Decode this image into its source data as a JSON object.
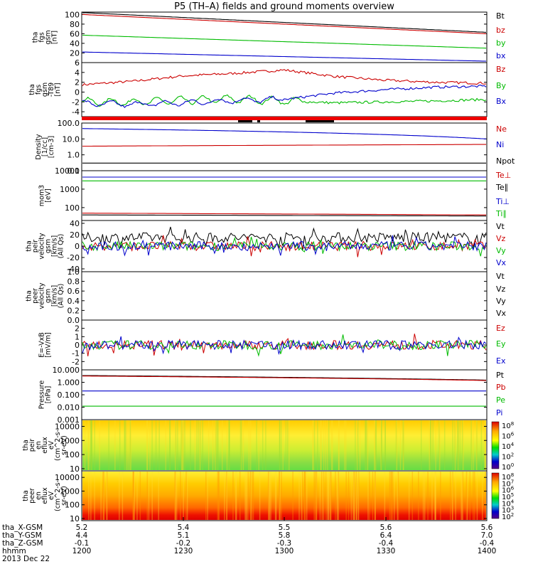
{
  "title": "P5 (TH–A) fields and ground moments overview",
  "chart_data": [
    {
      "id": "fgs_gsm",
      "type": "line",
      "ylabel": [
        "tha",
        "fgs",
        "gsm",
        "[nT]"
      ],
      "yticks": [
        "100",
        "80",
        "60",
        "40",
        "20"
      ],
      "ylim": [
        0,
        105
      ],
      "series": [
        {
          "name": "Bt",
          "color": "#000000",
          "values": [
            104,
            63
          ]
        },
        {
          "name": "bz",
          "color": "#cc0000",
          "values": [
            100,
            60
          ]
        },
        {
          "name": "by",
          "color": "#00bb00",
          "values": [
            57,
            30
          ]
        },
        {
          "name": "bx",
          "color": "#0000cc",
          "values": [
            22,
            3
          ]
        }
      ]
    },
    {
      "id": "fgs_dgsm",
      "type": "line",
      "ylabel": [
        "tha",
        "fgs",
        "gsm",
        "-T89",
        "[nT]"
      ],
      "yticks": [
        "6",
        "4",
        "2",
        "0",
        "-2",
        "-4"
      ],
      "ylim": [
        -5,
        6
      ],
      "series": [
        {
          "name": "Bz",
          "color": "#cc0000",
          "values": [
            1.5,
            2.2,
            3.3,
            3.8,
            4.5,
            3.2,
            2.4,
            2.0,
            1.8
          ]
        },
        {
          "name": "By",
          "color": "#00bb00",
          "values": [
            -2.0,
            -2.0,
            -1.7,
            -1.4,
            -1.8,
            -2.2,
            -2.0,
            -1.8,
            -1.5
          ]
        },
        {
          "name": "Bx",
          "color": "#0000cc",
          "values": [
            -2.3,
            -2.5,
            -2.2,
            -1.7,
            -1.5,
            -0.2,
            0.5,
            1.0,
            1.2
          ]
        }
      ]
    },
    {
      "id": "density",
      "type": "line",
      "ylabel": [
        "Density",
        "[1/cc]",
        "[cm-3]"
      ],
      "yticks": [
        "100.0",
        "10.0",
        "1.0",
        "0.1"
      ],
      "log": true,
      "ylim": [
        0.1,
        100
      ],
      "series": [
        {
          "name": "Ne",
          "color": "#cc0000",
          "values": [
            3.5,
            4.5
          ]
        },
        {
          "name": "Ni",
          "color": "#0000cc",
          "values": [
            45,
            10
          ]
        },
        {
          "name": "Npot",
          "color": "#000000",
          "values": [
            0.3,
            0.3
          ]
        }
      ]
    },
    {
      "id": "temp",
      "type": "line",
      "ylabel": [
        "mom3",
        "[eV]"
      ],
      "yticks": [
        "10000",
        "1000",
        "100"
      ],
      "log": true,
      "ylim": [
        20,
        10000
      ],
      "series": [
        {
          "name": "Te⊥",
          "color": "#cc0000",
          "values": [
            50,
            40
          ]
        },
        {
          "name": "Te∥",
          "color": "#000000",
          "values": [
            40,
            35
          ]
        },
        {
          "name": "Ti⊥",
          "color": "#0000cc",
          "values": [
            4500,
            4500
          ]
        },
        {
          "name": "Ti∥",
          "color": "#00bb00",
          "values": [
            2800,
            2800
          ]
        }
      ]
    },
    {
      "id": "peir_vel",
      "type": "line",
      "ylabel": [
        "tha",
        "peir",
        "velocity",
        "gsm",
        "[km/s]",
        "(All Qs)"
      ],
      "yticks": [
        "40",
        "20",
        "0",
        "-20",
        "-40"
      ],
      "ylim": [
        -45,
        45
      ],
      "series": [
        {
          "name": "Vt",
          "color": "#000000",
          "values": [
            15,
            15
          ]
        },
        {
          "name": "Vz",
          "color": "#cc0000",
          "values": [
            0,
            0
          ]
        },
        {
          "name": "Vy",
          "color": "#00bb00",
          "values": [
            0,
            0
          ]
        },
        {
          "name": "Vx",
          "color": "#0000cc",
          "values": [
            0,
            0
          ]
        }
      ]
    },
    {
      "id": "peer_vel",
      "type": "line",
      "ylabel": [
        "tha",
        "peer",
        "velocity",
        "gsm",
        "[km/s]",
        "(All Qs)"
      ],
      "yticks": [
        "1.0",
        "0.8",
        "0.6",
        "0.4",
        "0.2",
        "0.0"
      ],
      "ylim": [
        0,
        1
      ],
      "series": [
        {
          "name": "Vt"
        },
        {
          "name": "Vz"
        },
        {
          "name": "Vy"
        },
        {
          "name": "Vx"
        }
      ]
    },
    {
      "id": "efield",
      "type": "line",
      "ylabel": [
        "E=-VxB",
        "[mV/m]"
      ],
      "yticks": [
        "2",
        "1",
        "0",
        "-1",
        "-2"
      ],
      "ylim": [
        -3,
        3
      ],
      "series": [
        {
          "name": "Ez",
          "color": "#cc0000",
          "values": [
            0,
            0
          ]
        },
        {
          "name": "Ey",
          "color": "#00bb00",
          "values": [
            0,
            0
          ]
        },
        {
          "name": "Ex",
          "color": "#0000cc",
          "values": [
            0,
            0
          ]
        }
      ]
    },
    {
      "id": "pressure",
      "type": "line",
      "ylabel": [
        "Pressure",
        "[nPa]"
      ],
      "yticks": [
        "10.000",
        "1.000",
        "0.100",
        "0.010",
        "0.001"
      ],
      "log": true,
      "ylim": [
        0.001,
        10
      ],
      "series": [
        {
          "name": "Pt",
          "color": "#000000",
          "values": [
            3.5,
            1.5
          ]
        },
        {
          "name": "Pb",
          "color": "#cc0000",
          "values": [
            3.2,
            1.4
          ]
        },
        {
          "name": "Pe",
          "color": "#00bb00",
          "values": [
            0.012,
            0.012
          ]
        },
        {
          "name": "Pi",
          "color": "#0000cc",
          "values": [
            0.2,
            0.2
          ]
        }
      ]
    },
    {
      "id": "peir_spec",
      "type": "heatmap",
      "ylabel": [
        "tha",
        "peir",
        "en",
        "eflux",
        "eV",
        "(cm^2-s-",
        "sr-eV)"
      ],
      "yticks": [
        "10000",
        "1000",
        "100",
        "10"
      ],
      "log": true,
      "ylim": [
        7,
        30000
      ],
      "colorbar": [
        "10^8",
        "10^6",
        "10^4",
        "10^2",
        "10^0"
      ]
    },
    {
      "id": "peer_spec",
      "type": "heatmap",
      "ylabel": [
        "tha",
        "peer",
        "en",
        "eflux",
        "eV",
        "(cm^2-s-",
        "sr-eV)"
      ],
      "yticks": [
        "10000",
        "1000",
        "100",
        "10"
      ],
      "log": true,
      "ylim": [
        7,
        30000
      ],
      "colorbar": [
        "10^8",
        "10^7",
        "10^6",
        "10^5",
        "10^4",
        "10^3",
        "10^2"
      ]
    }
  ],
  "xaxis": {
    "rows": [
      {
        "label": "tha_X-GSM",
        "values": [
          "5.2",
          "5.4",
          "5.5",
          "5.6",
          "5.6"
        ]
      },
      {
        "label": "tha_Y-GSM",
        "values": [
          "4.4",
          "5.1",
          "5.8",
          "6.4",
          "7.0"
        ]
      },
      {
        "label": "tha_Z-GSM",
        "values": [
          "-0.1",
          "-0.2",
          "-0.3",
          "-0.4",
          "-0.4"
        ]
      },
      {
        "label": "hhmm",
        "values": [
          "1200",
          "1230",
          "1300",
          "1330",
          "1400"
        ]
      }
    ],
    "date": "2013 Dec 22"
  }
}
